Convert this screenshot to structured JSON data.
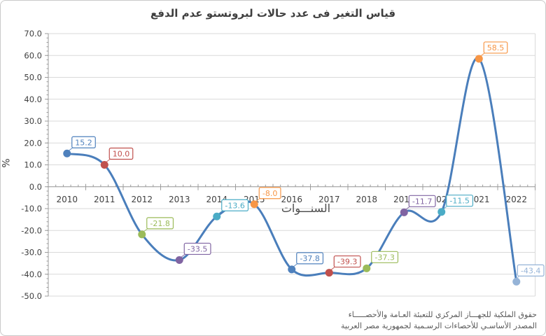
{
  "title": "قياس التغير فى عدد حالات لبروتستو عدم الدفع",
  "y_axis_label": "%",
  "x_axis_label": "السنـــوات",
  "source_lines": [
    "حقوق الملكية للجهـــاز المركزي للتعبئة العـامة والأحصـــــاء",
    "المصدر الأساسـي للأحصاءات الرسـمية لجمهورية مصر العربية"
  ],
  "chart_data": {
    "type": "line",
    "title": "قياس التغير فى عدد حالات لبروتستو عدم الدفع",
    "xlabel": "السنـــوات",
    "ylabel": "%",
    "x": [
      2010,
      2011,
      2012,
      2013,
      2014,
      2015,
      2016,
      2017,
      2018,
      2019,
      2020,
      2021,
      2022
    ],
    "values": [
      15.2,
      10.0,
      -21.8,
      -33.5,
      -13.6,
      -8.0,
      -37.8,
      -39.3,
      -37.3,
      -11.7,
      -11.5,
      58.5,
      -43.4
    ],
    "ylim": [
      -50,
      70
    ],
    "ytick_step": 10,
    "ytick_minor_step": 2,
    "grid": true,
    "smooth": true,
    "legend": "none",
    "line_color": "#4A7EBB",
    "point_colors": [
      "#4F81BD",
      "#C0504D",
      "#9BBB59",
      "#8064A2",
      "#4BACC6",
      "#F79646",
      "#4F81BD",
      "#C0504D",
      "#9BBB59",
      "#8064A2",
      "#4BACC6",
      "#F79646",
      "#95B3D7"
    ],
    "grid_color": "#D9D9D9",
    "axis_color": "#9C9C9C",
    "tick_text_color": "#404040"
  }
}
